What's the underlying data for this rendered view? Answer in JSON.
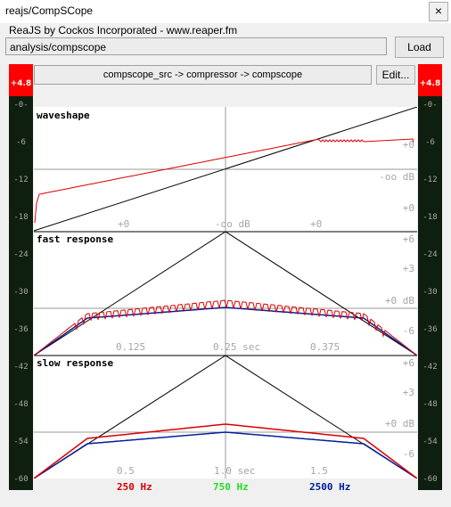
{
  "window": {
    "title": "reajs/CompSCope",
    "close_glyph": "×"
  },
  "header": {
    "credits": "ReaJS by Cockos Incorporated - www.reaper.fm",
    "path_value": "analysis/compscope",
    "load_label": "Load",
    "routing_text": "compscope_src -> compressor -> compscope",
    "edit_label": "Edit..."
  },
  "meters": {
    "peak_label": "+4.8",
    "ticks": [
      "-0-",
      "-6",
      "-12",
      "-18",
      "-24",
      "-30",
      "-36",
      "-42",
      "-48",
      "-54",
      "-60"
    ]
  },
  "sections": {
    "waveshape": {
      "title": "waveshape",
      "right_labels": [
        "+0",
        "-oo dB",
        "+0"
      ],
      "bottom_labels": [
        "+0",
        "-oo dB",
        "+0"
      ]
    },
    "fast": {
      "title": "fast response",
      "right_labels": [
        "+6",
        "+3",
        "+0 dB",
        "-6"
      ],
      "bottom_labels": [
        "0.125",
        "0.25 sec",
        "0.375"
      ]
    },
    "slow": {
      "title": "slow response",
      "right_labels": [
        "+6",
        "+3",
        "+0 dB",
        "-6"
      ],
      "bottom_labels": [
        "0.5",
        "1.0 sec",
        "1.5"
      ]
    }
  },
  "legend": {
    "items": [
      {
        "label": "250 Hz",
        "color": "#d40000"
      },
      {
        "label": "750 Hz",
        "color": "#22dd22"
      },
      {
        "label": "2500 Hz",
        "color": "#00209a"
      }
    ]
  },
  "colors": {
    "meter_bg": "#0f1f0f",
    "peak": "#ff0000",
    "grid": "#9a9a9a",
    "curve_red": "#dd0000",
    "curve_blue": "#00209a"
  }
}
